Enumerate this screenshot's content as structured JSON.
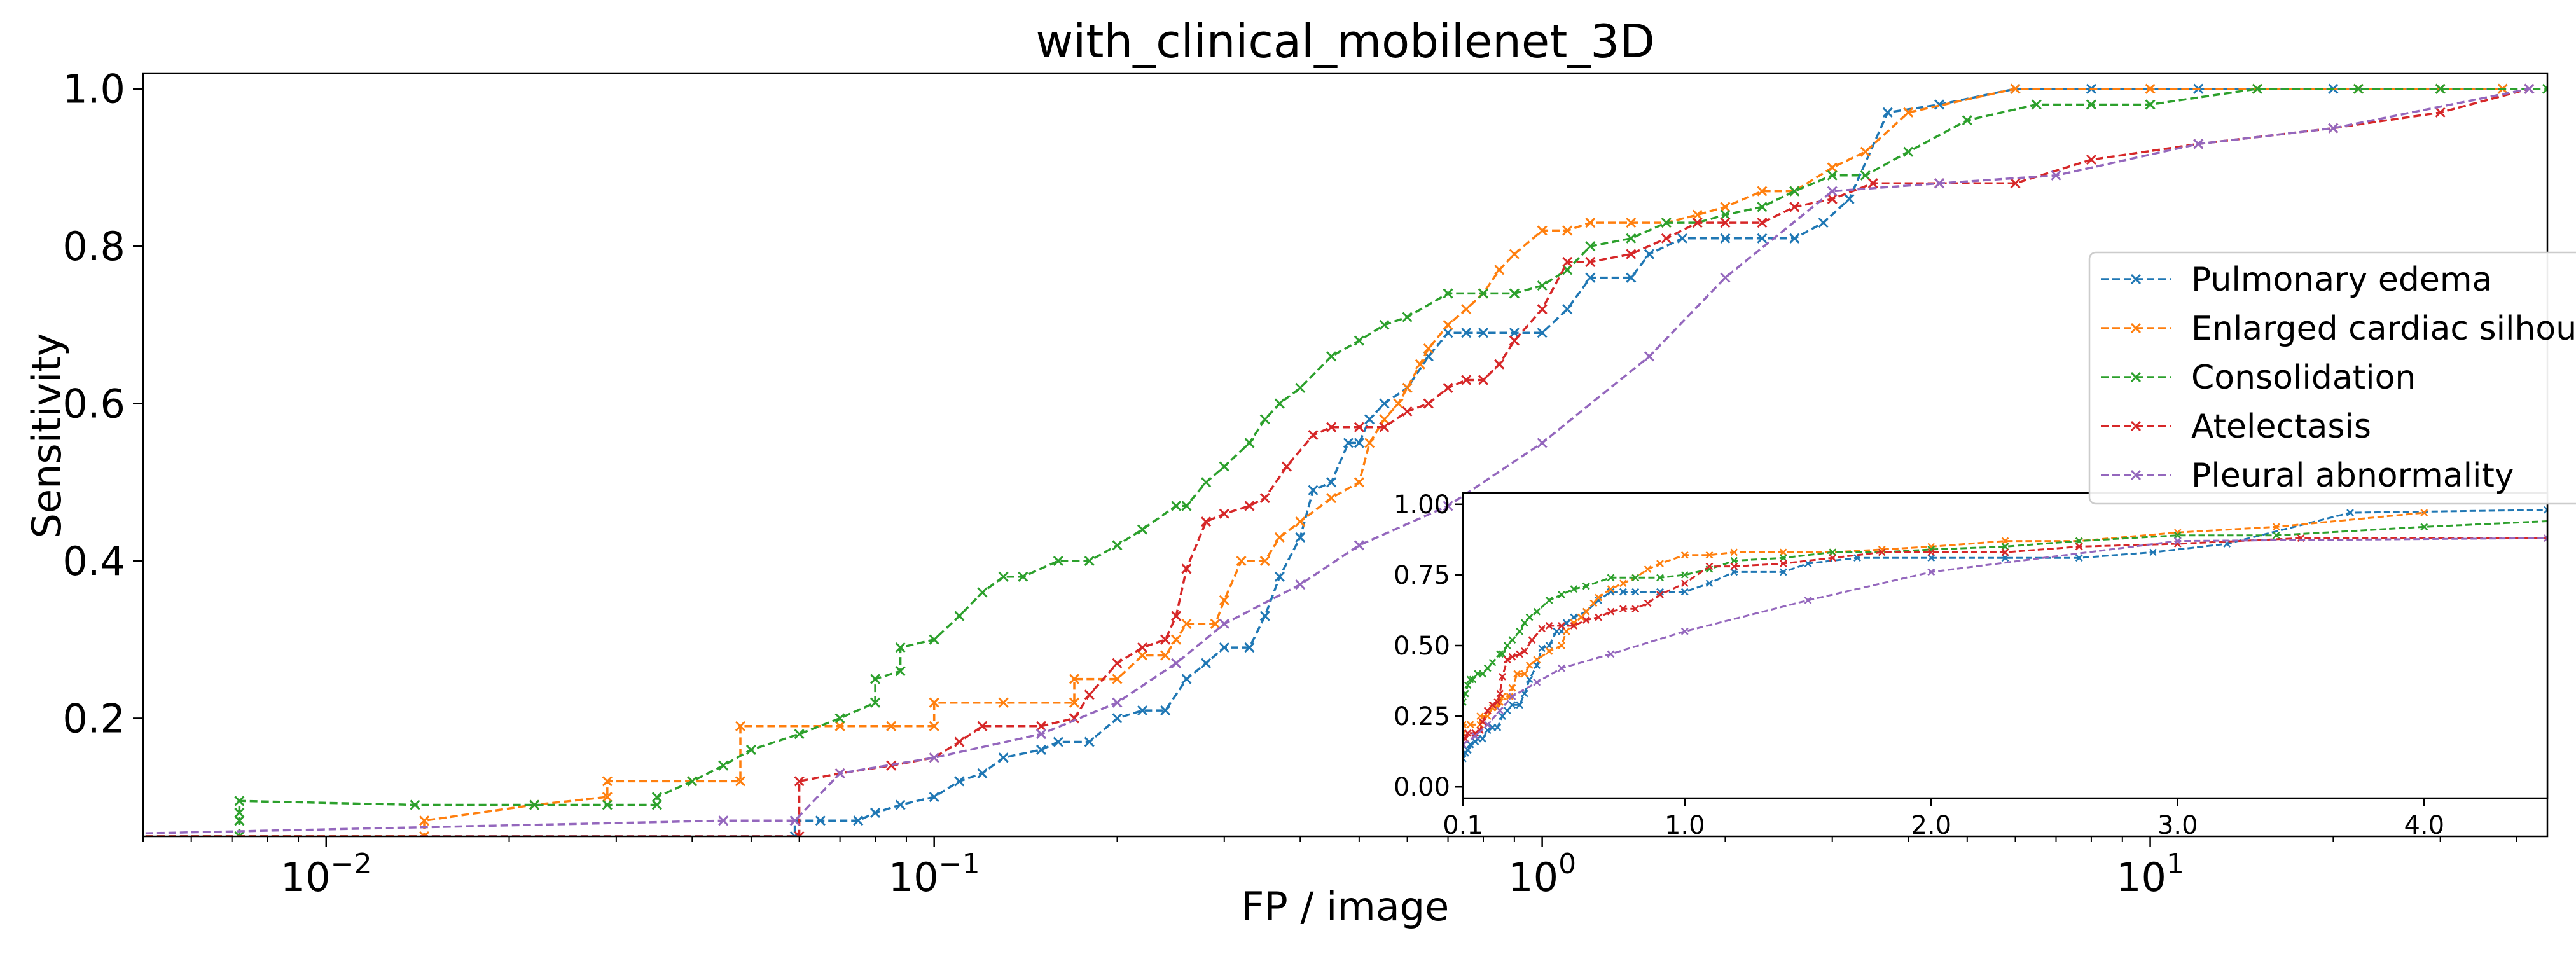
{
  "chart_data": {
    "type": "line",
    "title": "with_clinical_mobilenet_3D",
    "xlabel": "FP / image",
    "ylabel": "Sensitivity",
    "xscale": "log",
    "xlim": [
      0.005,
      45
    ],
    "ylim": [
      0.05,
      1.02
    ],
    "grid": false,
    "legend_position": "right",
    "x_ticks": [
      {
        "value": 0.01,
        "base": "10",
        "exp": "−2"
      },
      {
        "value": 0.1,
        "base": "10",
        "exp": "−1"
      },
      {
        "value": 1,
        "base": "10",
        "exp": "0"
      },
      {
        "value": 10,
        "base": "10",
        "exp": "1"
      }
    ],
    "y_ticks": [
      {
        "value": 0.2,
        "label": "0.2"
      },
      {
        "value": 0.4,
        "label": "0.4"
      },
      {
        "value": 0.6,
        "label": "0.6"
      },
      {
        "value": 0.8,
        "label": "0.8"
      },
      {
        "value": 1.0,
        "label": "1.0"
      }
    ],
    "series": [
      {
        "name": "Pulmonary edema",
        "color": "#1f77b4",
        "x": [
          0.003,
          0.059,
          0.059,
          0.065,
          0.075,
          0.08,
          0.088,
          0.1,
          0.11,
          0.12,
          0.13,
          0.15,
          0.16,
          0.18,
          0.2,
          0.22,
          0.24,
          0.26,
          0.28,
          0.3,
          0.33,
          0.35,
          0.37,
          0.4,
          0.42,
          0.45,
          0.48,
          0.5,
          0.52,
          0.55,
          0.6,
          0.65,
          0.7,
          0.75,
          0.8,
          0.9,
          1.0,
          1.1,
          1.2,
          1.4,
          1.5,
          1.7,
          2.0,
          2.3,
          2.6,
          2.9,
          3.2,
          3.7,
          4.5,
          6.0,
          8.0,
          12.0,
          20.0,
          30.0,
          38.0
        ],
        "y": [
          0.05,
          0.05,
          0.07,
          0.07,
          0.07,
          0.08,
          0.09,
          0.1,
          0.12,
          0.13,
          0.15,
          0.16,
          0.17,
          0.17,
          0.2,
          0.21,
          0.21,
          0.25,
          0.27,
          0.29,
          0.29,
          0.33,
          0.38,
          0.43,
          0.49,
          0.5,
          0.55,
          0.55,
          0.58,
          0.6,
          0.62,
          0.66,
          0.69,
          0.69,
          0.69,
          0.69,
          0.69,
          0.72,
          0.76,
          0.76,
          0.79,
          0.81,
          0.81,
          0.81,
          0.81,
          0.83,
          0.86,
          0.97,
          0.98,
          1.0,
          1.0,
          1.0,
          1.0,
          1.0,
          1.0
        ]
      },
      {
        "name": "Enlarged cardiac silhouette",
        "color": "#ff7f0e",
        "x": [
          0.003,
          0.0145,
          0.0145,
          0.022,
          0.029,
          0.029,
          0.04,
          0.048,
          0.048,
          0.07,
          0.085,
          0.1,
          0.1,
          0.13,
          0.17,
          0.17,
          0.2,
          0.22,
          0.24,
          0.25,
          0.26,
          0.29,
          0.3,
          0.32,
          0.35,
          0.37,
          0.4,
          0.45,
          0.5,
          0.52,
          0.55,
          0.58,
          0.6,
          0.63,
          0.65,
          0.7,
          0.75,
          0.8,
          0.85,
          0.9,
          1.0,
          1.1,
          1.2,
          1.4,
          1.6,
          1.8,
          2.0,
          2.3,
          2.6,
          3.0,
          3.4,
          4.0,
          6.0,
          10.0,
          15.0,
          22.0,
          30.0,
          38.0
        ],
        "y": [
          0.05,
          0.05,
          0.07,
          0.09,
          0.1,
          0.12,
          0.12,
          0.12,
          0.19,
          0.19,
          0.19,
          0.19,
          0.22,
          0.22,
          0.22,
          0.25,
          0.25,
          0.28,
          0.28,
          0.3,
          0.32,
          0.32,
          0.35,
          0.4,
          0.4,
          0.43,
          0.45,
          0.48,
          0.5,
          0.55,
          0.58,
          0.6,
          0.62,
          0.65,
          0.67,
          0.7,
          0.72,
          0.74,
          0.77,
          0.79,
          0.82,
          0.82,
          0.83,
          0.83,
          0.83,
          0.84,
          0.85,
          0.87,
          0.87,
          0.9,
          0.92,
          0.97,
          1.0,
          1.0,
          1.0,
          1.0,
          1.0,
          1.0
        ]
      },
      {
        "name": "Consolidation",
        "color": "#2ca02c",
        "x": [
          0.0072,
          0.0072,
          0.0072,
          0.0072,
          0.014,
          0.022,
          0.029,
          0.035,
          0.035,
          0.04,
          0.045,
          0.05,
          0.06,
          0.07,
          0.08,
          0.08,
          0.088,
          0.088,
          0.1,
          0.11,
          0.12,
          0.13,
          0.14,
          0.16,
          0.18,
          0.2,
          0.22,
          0.25,
          0.26,
          0.28,
          0.3,
          0.33,
          0.35,
          0.37,
          0.4,
          0.45,
          0.5,
          0.55,
          0.6,
          0.7,
          0.8,
          0.9,
          1.0,
          1.1,
          1.2,
          1.4,
          1.6,
          1.8,
          2.0,
          2.3,
          2.6,
          3.0,
          3.4,
          4.0,
          5.0,
          6.5,
          8.0,
          10.0,
          15.0,
          22.0,
          30.0,
          45.0
        ],
        "y": [
          0.05,
          0.07,
          0.08,
          0.095,
          0.09,
          0.09,
          0.09,
          0.09,
          0.1,
          0.12,
          0.14,
          0.16,
          0.18,
          0.2,
          0.22,
          0.25,
          0.26,
          0.29,
          0.3,
          0.33,
          0.36,
          0.38,
          0.38,
          0.4,
          0.4,
          0.42,
          0.44,
          0.47,
          0.47,
          0.5,
          0.52,
          0.55,
          0.58,
          0.6,
          0.62,
          0.66,
          0.68,
          0.7,
          0.71,
          0.74,
          0.74,
          0.74,
          0.75,
          0.77,
          0.8,
          0.81,
          0.83,
          0.83,
          0.84,
          0.85,
          0.87,
          0.89,
          0.89,
          0.92,
          0.96,
          0.98,
          0.98,
          0.98,
          1.0,
          1.0,
          1.0,
          1.0
        ]
      },
      {
        "name": "Atelectasis",
        "color": "#d62728",
        "x": [
          0.003,
          0.06,
          0.06,
          0.07,
          0.085,
          0.1,
          0.11,
          0.12,
          0.15,
          0.17,
          0.18,
          0.2,
          0.22,
          0.24,
          0.25,
          0.26,
          0.28,
          0.3,
          0.33,
          0.35,
          0.38,
          0.42,
          0.45,
          0.5,
          0.55,
          0.6,
          0.65,
          0.7,
          0.75,
          0.8,
          0.85,
          0.9,
          1.0,
          1.1,
          1.2,
          1.4,
          1.6,
          1.8,
          2.0,
          2.3,
          2.6,
          3.0,
          3.5,
          4.5,
          6.0,
          8.0,
          12.0,
          20.0,
          30.0,
          42.0
        ],
        "y": [
          0.05,
          0.05,
          0.12,
          0.13,
          0.14,
          0.15,
          0.17,
          0.19,
          0.19,
          0.2,
          0.23,
          0.27,
          0.29,
          0.3,
          0.33,
          0.39,
          0.45,
          0.46,
          0.47,
          0.48,
          0.52,
          0.56,
          0.57,
          0.57,
          0.57,
          0.59,
          0.6,
          0.62,
          0.63,
          0.63,
          0.65,
          0.68,
          0.72,
          0.78,
          0.78,
          0.79,
          0.81,
          0.83,
          0.83,
          0.83,
          0.85,
          0.86,
          0.88,
          0.88,
          0.88,
          0.91,
          0.93,
          0.95,
          0.97,
          1.0
        ]
      },
      {
        "name": "Pleural abnormality",
        "color": "#9467bd",
        "x": [
          0.003,
          0.045,
          0.059,
          0.07,
          0.1,
          0.15,
          0.2,
          0.25,
          0.3,
          0.4,
          0.5,
          0.7,
          1.0,
          1.5,
          2.0,
          3.0,
          4.5,
          7.0,
          12.0,
          20.0,
          42.0
        ],
        "y": [
          0.05,
          0.07,
          0.07,
          0.13,
          0.15,
          0.18,
          0.22,
          0.27,
          0.32,
          0.37,
          0.42,
          0.47,
          0.55,
          0.66,
          0.76,
          0.87,
          0.88,
          0.89,
          0.93,
          0.95,
          1.0
        ]
      }
    ]
  },
  "inset": {
    "xscale": "linear",
    "xlim": [
      0.1,
      4.5
    ],
    "ylim": [
      -0.04,
      1.04
    ],
    "x_ticks": [
      {
        "value": 0.1,
        "label": "0.1"
      },
      {
        "value": 1.0,
        "label": "1.0"
      },
      {
        "value": 2.0,
        "label": "2.0"
      },
      {
        "value": 3.0,
        "label": "3.0"
      },
      {
        "value": 4.0,
        "label": "4.0"
      }
    ],
    "y_ticks": [
      {
        "value": 0.0,
        "label": "0.00"
      },
      {
        "value": 0.25,
        "label": "0.25"
      },
      {
        "value": 0.5,
        "label": "0.50"
      },
      {
        "value": 0.75,
        "label": "0.75"
      },
      {
        "value": 1.0,
        "label": "1.00"
      }
    ]
  }
}
